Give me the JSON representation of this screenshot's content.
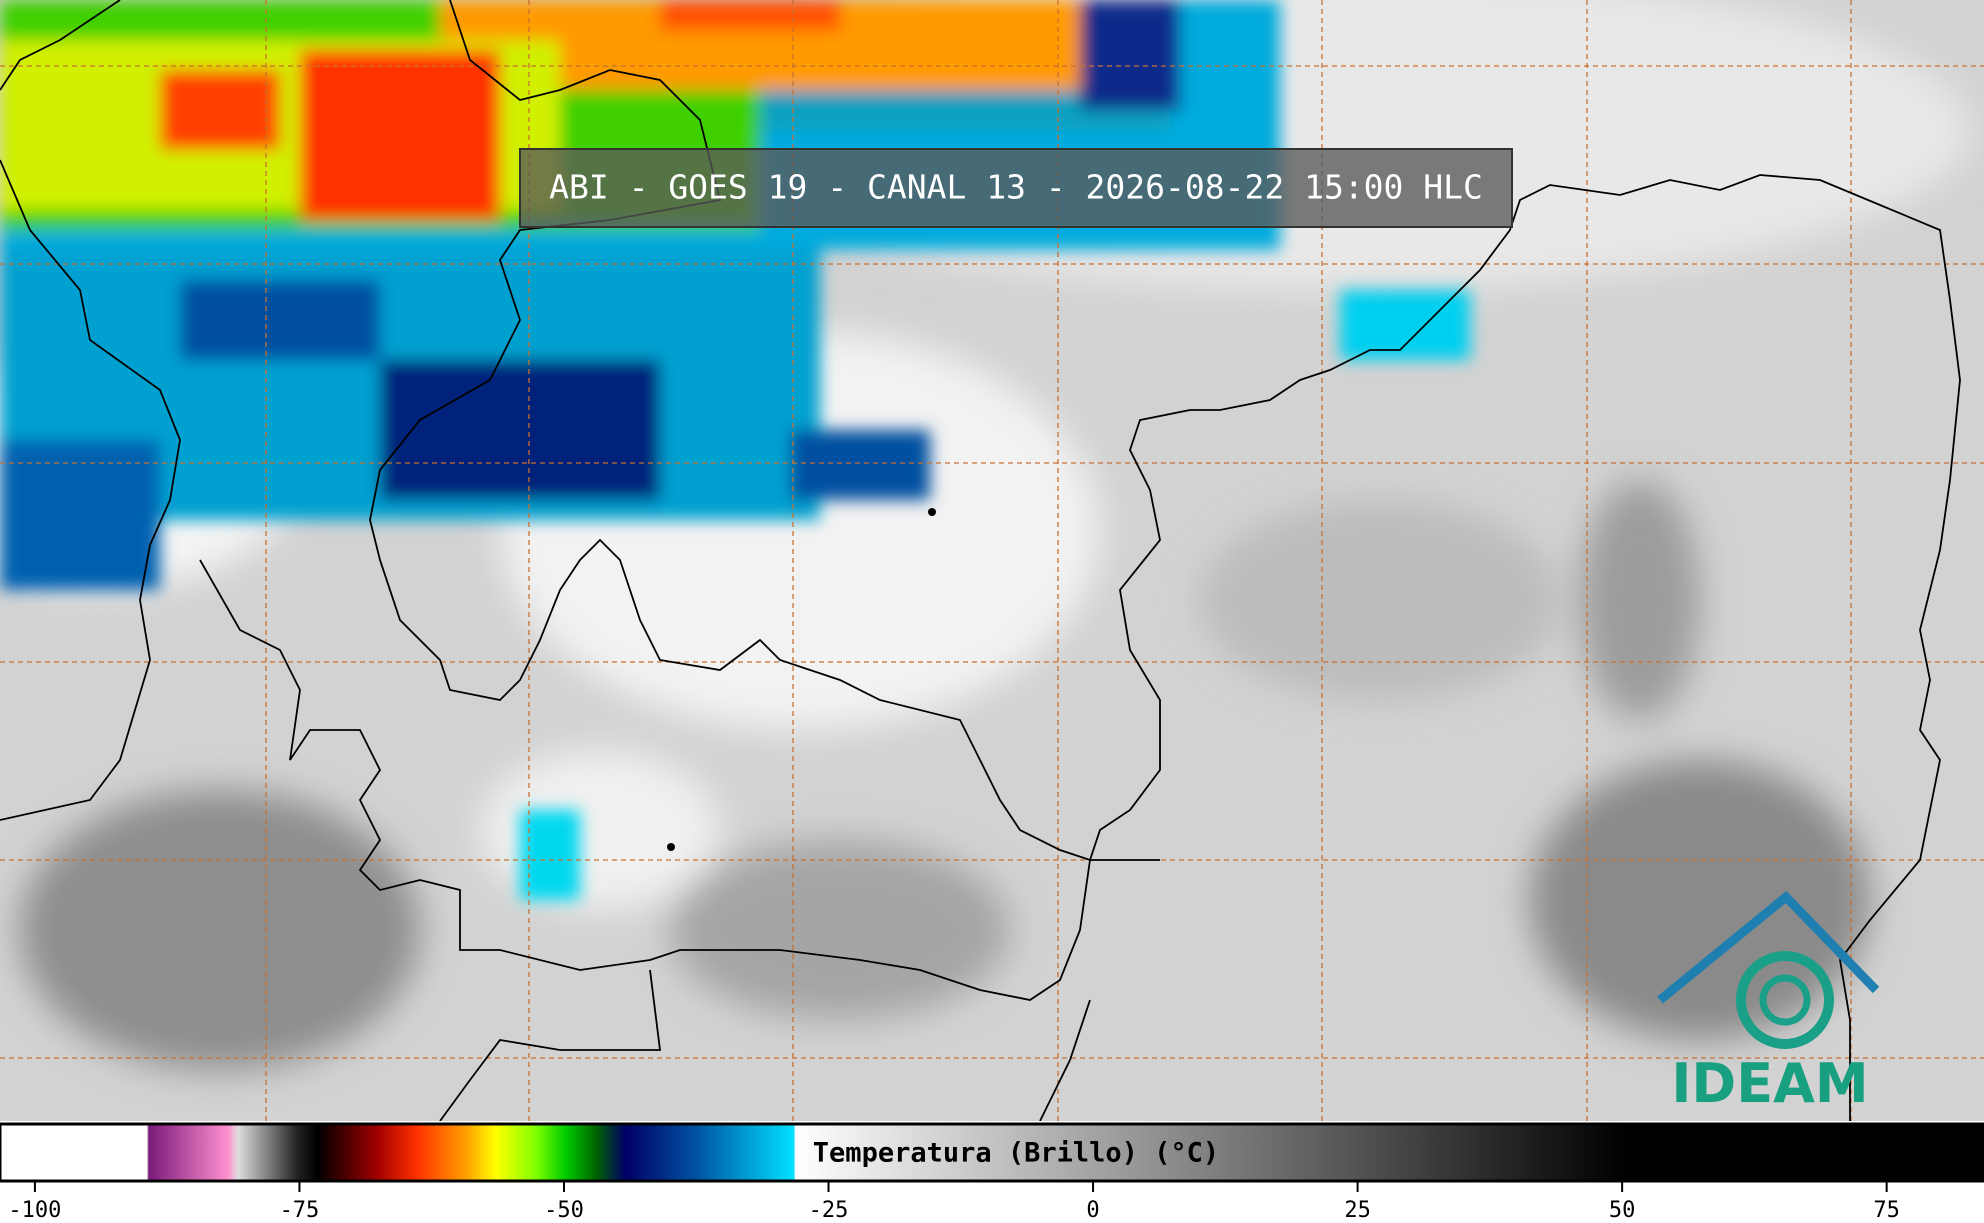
{
  "title": "ABI - GOES 19 - CANAL 13 - 2026-08-22 15:00 HLC",
  "colorbar": {
    "label": "Temperatura (Brillo) (°C)",
    "range": [
      -103.3,
      84.2
    ],
    "ticks": [
      -100,
      -75,
      -50,
      -25,
      0,
      25,
      50,
      75
    ]
  },
  "logo": "IDEAM"
}
